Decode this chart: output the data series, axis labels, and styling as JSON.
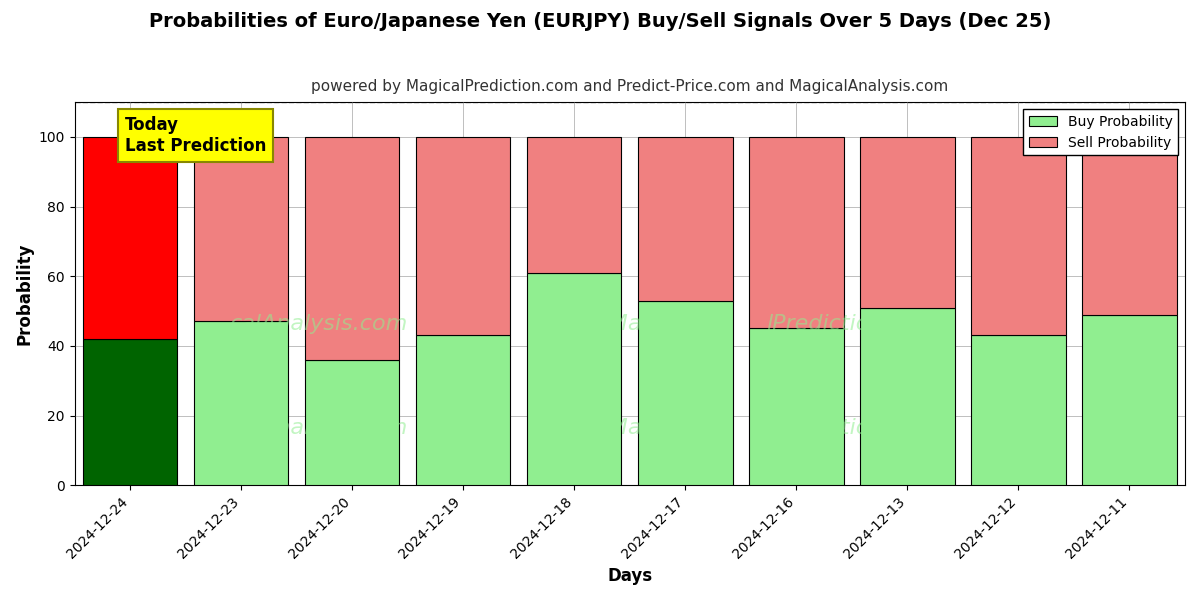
{
  "title": "Probabilities of Euro/Japanese Yen (EURJPY) Buy/Sell Signals Over 5 Days (Dec 25)",
  "subtitle": "powered by MagicalPrediction.com and Predict-Price.com and MagicalAnalysis.com",
  "xlabel": "Days",
  "ylabel": "Probability",
  "categories": [
    "2024-12-24",
    "2024-12-23",
    "2024-12-20",
    "2024-12-19",
    "2024-12-18",
    "2024-12-17",
    "2024-12-16",
    "2024-12-13",
    "2024-12-12",
    "2024-12-11"
  ],
  "buy_values": [
    42,
    47,
    36,
    43,
    61,
    53,
    45,
    51,
    43,
    49
  ],
  "sell_values": [
    58,
    53,
    64,
    57,
    39,
    47,
    55,
    49,
    57,
    51
  ],
  "today_index": 0,
  "buy_color_today": "#006400",
  "sell_color_today": "#ff0000",
  "buy_color_normal": "#90ee90",
  "sell_color_normal": "#f08080",
  "bar_edgecolor": "#000000",
  "ylim": [
    0,
    110
  ],
  "yticks": [
    0,
    20,
    40,
    60,
    80,
    100
  ],
  "dashed_line_y": 110,
  "today_box_color": "#ffff00",
  "today_label_line1": "Today",
  "today_label_line2": "Last Prediction",
  "legend_buy_label": "Buy Probability",
  "legend_sell_label": "Sell Probability",
  "title_fontsize": 14,
  "subtitle_fontsize": 11,
  "axis_label_fontsize": 12,
  "tick_fontsize": 10,
  "bar_width": 0.85,
  "figsize": [
    12,
    6
  ],
  "dpi": 100
}
